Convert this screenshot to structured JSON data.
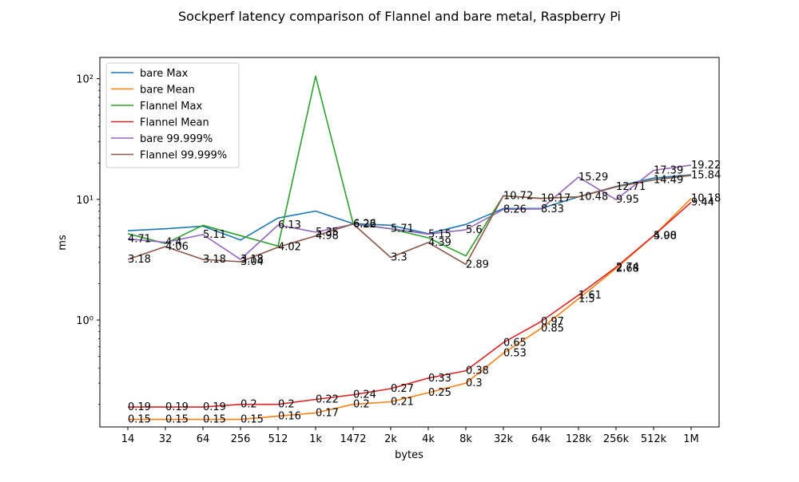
{
  "chart_data": {
    "type": "line",
    "title": "Sockperf latency comparison of Flannel and bare metal, Raspberry Pi",
    "xlabel": "bytes",
    "ylabel": "ms",
    "yscale": "log",
    "ylim": [
      0.13,
      150
    ],
    "y_ticks": [
      {
        "value": 1,
        "label": "10⁰"
      },
      {
        "value": 10,
        "label": "10¹"
      },
      {
        "value": 100,
        "label": "10²"
      }
    ],
    "categories": [
      "14",
      "32",
      "64",
      "256",
      "512",
      "1k",
      "1472",
      "2k",
      "4k",
      "8k",
      "32k",
      "64k",
      "128k",
      "256k",
      "512k",
      "1M"
    ],
    "legend_position": "upper-left",
    "grid": false,
    "series": [
      {
        "name": "bare Max",
        "color": "#1f77b4",
        "values": [
          5.5,
          5.7,
          6.0,
          4.6,
          7.0,
          8.0,
          6.3,
          6.1,
          5.2,
          6.2,
          8.4,
          8.4,
          10.5,
          12.8,
          15.0,
          16.0
        ],
        "labels": []
      },
      {
        "name": "bare Mean",
        "color": "#ff7f0e",
        "values": [
          0.15,
          0.15,
          0.15,
          0.15,
          0.16,
          0.17,
          0.2,
          0.21,
          0.25,
          0.3,
          0.53,
          0.85,
          1.5,
          2.68,
          4.98,
          10.18
        ],
        "labels": [
          "0.15",
          "0.15",
          "0.15",
          "0.15",
          "0.16",
          "0.17",
          "0.2",
          "0.21",
          "0.25",
          "0.3",
          "0.53",
          "0.85",
          "1.5",
          "2.68",
          "4.98",
          "10.18"
        ]
      },
      {
        "name": "Flannel Max",
        "color": "#2ca02c",
        "values": [
          5.2,
          4.3,
          6.1,
          5.0,
          4.1,
          105,
          6.3,
          5.7,
          4.8,
          3.4,
          10.7,
          10.2,
          10.5,
          12.7,
          14.5,
          15.8
        ],
        "labels": []
      },
      {
        "name": "Flannel Mean",
        "color": "#d62728",
        "values": [
          0.19,
          0.19,
          0.19,
          0.2,
          0.2,
          0.22,
          0.24,
          0.27,
          0.33,
          0.38,
          0.65,
          0.97,
          1.61,
          2.74,
          5.0,
          9.44
        ],
        "labels": [
          "0.19",
          "0.19",
          "0.19",
          "0.2",
          "0.2",
          "0.22",
          "0.24",
          "0.27",
          "0.33",
          "0.38",
          "0.65",
          "0.97",
          "1.61",
          "2.74",
          "5.00",
          "9.44"
        ]
      },
      {
        "name": "bare 99.999%",
        "color": "#9467bd",
        "values": [
          4.71,
          4.4,
          5.11,
          3.18,
          6.13,
          5.35,
          6.22,
          5.71,
          5.15,
          5.6,
          8.26,
          8.33,
          15.29,
          9.95,
          17.39,
          19.22
        ],
        "labels": [
          "4.71",
          "4.4",
          "5.11",
          "3.18",
          "6.13",
          "5.35",
          "6.22",
          "5.71",
          "5.15",
          "5.6",
          "8.26",
          "8.33",
          "15.29",
          "9.95",
          "17.39",
          "19.22"
        ]
      },
      {
        "name": "Flannel 99.999%",
        "color": "#8c564b",
        "values": [
          3.18,
          4.06,
          3.18,
          3.04,
          4.02,
          4.98,
          6.26,
          3.3,
          4.39,
          2.89,
          10.72,
          10.17,
          10.48,
          12.71,
          14.49,
          15.84
        ],
        "labels": [
          "3.18",
          "4.06",
          "3.18",
          "3.04",
          "4.02",
          "4.98",
          "6.26",
          "3.3",
          "4.39",
          "2.89",
          "10.72",
          "10.17",
          "10.48",
          "12.71",
          "14.49",
          "15.84"
        ]
      }
    ]
  }
}
